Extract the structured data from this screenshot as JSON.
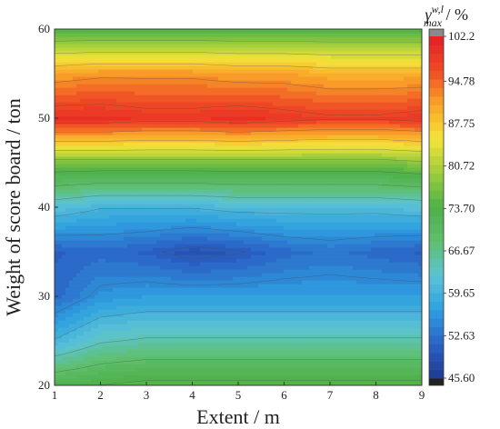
{
  "chart_data": {
    "type": "heatmap",
    "subtype": "filled-contour",
    "xlabel": "Extent / m",
    "ylabel": "Weight of score board / ton",
    "xlim": [
      1,
      9
    ],
    "ylim": [
      20,
      60
    ],
    "x_ticks": [
      "1",
      "2",
      "3",
      "4",
      "5",
      "6",
      "7",
      "8",
      "9"
    ],
    "y_ticks": [
      "20",
      "30",
      "40",
      "50",
      "60"
    ],
    "colorbar": {
      "title_symbol": "γ",
      "title_superscript": "w,l",
      "title_subscript": "max",
      "title_unit": " / %",
      "min": 45.6,
      "max": 102.2,
      "tick_labels": [
        "102.2",
        "94.78",
        "87.75",
        "80.72",
        "73.70",
        "66.67",
        "59.65",
        "52.63",
        "45.60"
      ],
      "colormap": [
        "#1f3a93",
        "#2a62c4",
        "#2e9fe0",
        "#5cc4d6",
        "#5fbf6e",
        "#4db048",
        "#9ccc3c",
        "#f4e43a",
        "#f9a628",
        "#ef4a24",
        "#e41f26"
      ],
      "under_color": "#222222",
      "over_color": "#8a8a8a"
    },
    "x": [
      1,
      2,
      3,
      4,
      5,
      6,
      7,
      8,
      9
    ],
    "y": [
      20,
      25,
      30,
      35,
      40,
      45,
      50,
      55,
      60
    ],
    "z": [
      [
        73,
        74,
        75,
        75,
        75,
        75,
        75,
        75,
        75
      ],
      [
        60,
        64,
        65,
        65,
        65,
        65,
        65,
        65,
        65
      ],
      [
        52,
        56,
        57,
        57,
        57,
        57,
        57,
        57,
        57
      ],
      [
        51,
        52,
        51,
        49,
        50,
        52,
        53,
        52,
        51
      ],
      [
        62,
        60,
        60,
        60,
        61,
        61,
        61,
        61,
        62
      ],
      [
        77,
        77,
        77,
        77,
        77,
        77,
        77,
        77,
        78
      ],
      [
        100,
        100,
        99,
        99,
        100,
        99,
        98,
        98,
        99
      ],
      [
        91,
        92,
        92,
        92,
        91,
        91,
        90,
        90,
        90
      ],
      [
        74,
        74,
        74,
        74,
        74,
        74,
        74,
        74,
        74
      ]
    ]
  }
}
